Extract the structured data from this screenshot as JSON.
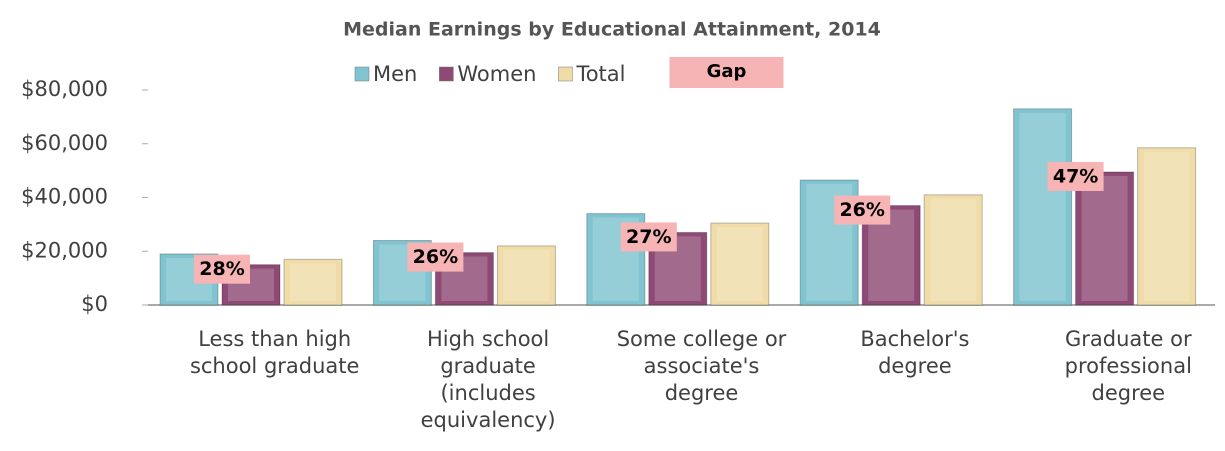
{
  "chart_data": {
    "type": "bar",
    "title": "Median Earnings by Educational Attainment, 2014",
    "categories": [
      "Less than high school graduate",
      "High school graduate (includes equivalency)",
      "Some college or associate's degree",
      "Bachelor's degree",
      "Graduate or professional degree"
    ],
    "series": [
      {
        "name": "Men",
        "color": "#7fc4d0",
        "values": [
          19000,
          24000,
          34000,
          46500,
          73000
        ]
      },
      {
        "name": "Women",
        "color": "#8e4a74",
        "values": [
          15000,
          19500,
          27000,
          37000,
          49500
        ]
      },
      {
        "name": "Total",
        "color": "#f0dca8",
        "values": [
          17000,
          22000,
          30500,
          41000,
          58500
        ]
      }
    ],
    "gap": {
      "name": "Gap",
      "color": "#f7b4b4",
      "values": [
        28,
        26,
        27,
        26,
        47
      ],
      "value_labels": [
        "28%",
        "26%",
        "27%",
        "26%",
        "47%"
      ]
    },
    "ylim": [
      0,
      80000
    ],
    "yticks": [
      {
        "value": 0,
        "label": "$0"
      },
      {
        "value": 20000,
        "label": "$20,000"
      },
      {
        "value": 40000,
        "label": "$40,000"
      },
      {
        "value": 60000,
        "label": "$60,000"
      },
      {
        "value": 80000,
        "label": "$80,000"
      }
    ],
    "grid": false
  }
}
